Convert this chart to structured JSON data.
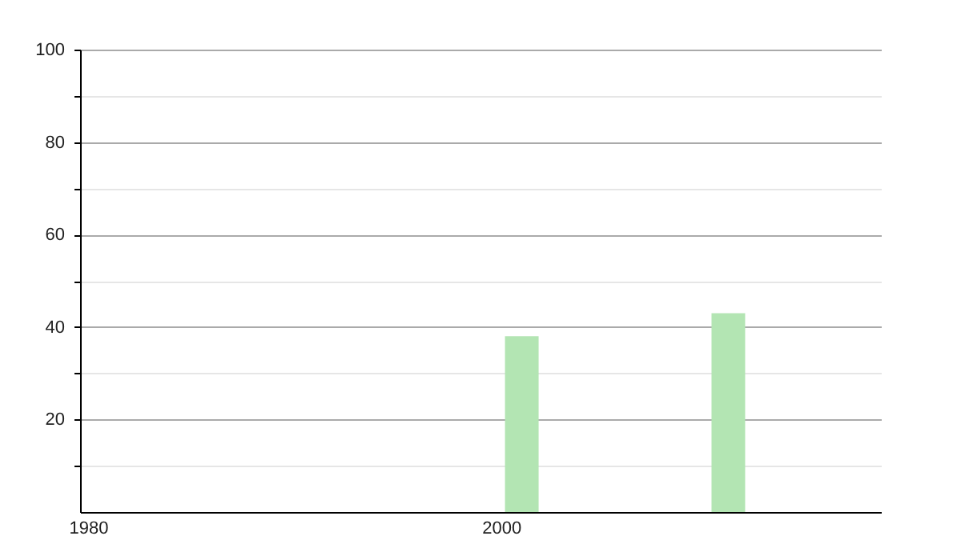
{
  "chart_data": {
    "type": "bar",
    "x": [
      2001,
      2011
    ],
    "values": [
      38,
      43
    ],
    "color": "#b3e5b3",
    "xlim": [
      1980,
      2018
    ],
    "xticks": [
      1980,
      2000
    ],
    "ylim": [
      0,
      100
    ],
    "yticks": [
      {
        "value": 10,
        "label": null
      },
      20,
      {
        "value": 30,
        "label": null
      },
      40,
      {
        "value": 50,
        "label": null
      },
      60,
      {
        "value": 70,
        "label": null
      },
      80,
      {
        "value": 90,
        "label": null
      },
      100
    ],
    "grid": "y"
  }
}
